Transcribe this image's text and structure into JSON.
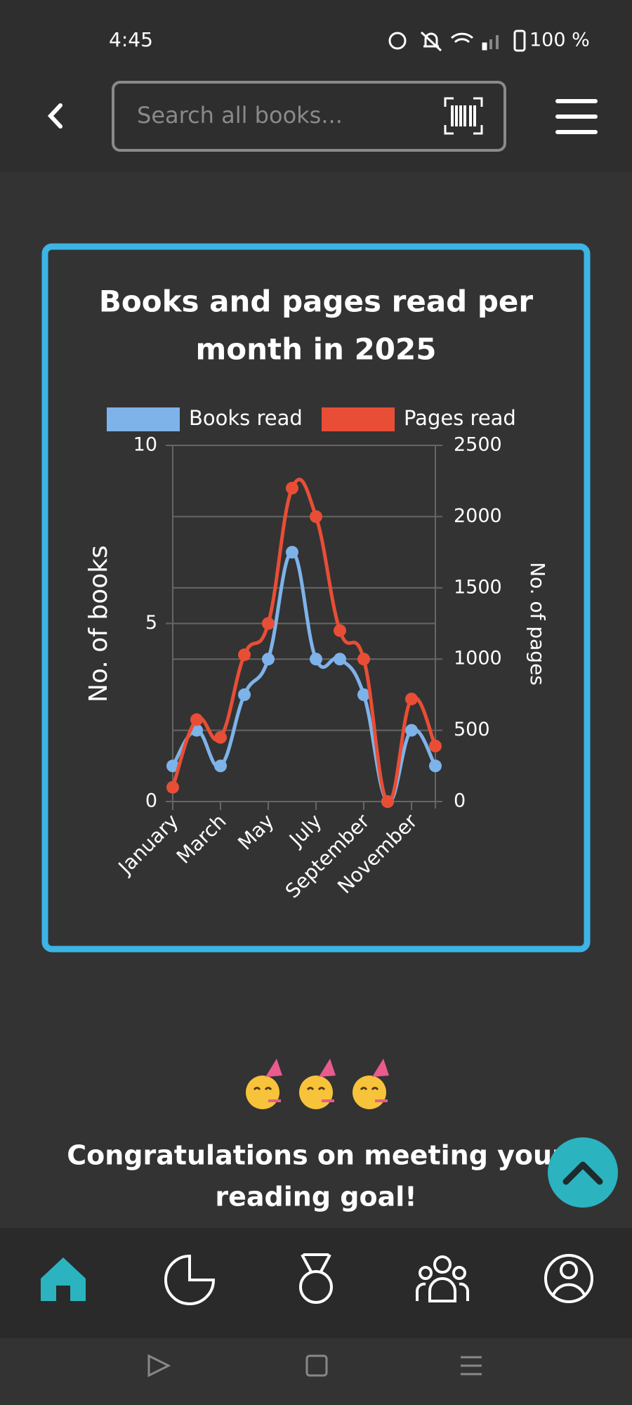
{
  "status": {
    "time": "4:45",
    "battery": "100 %"
  },
  "search": {
    "placeholder": "Search all books..."
  },
  "chart_data": {
    "type": "line",
    "title": [
      "Books and pages read per",
      "month in 2025"
    ],
    "categories": [
      "January",
      null,
      "March",
      null,
      "May",
      null,
      "July",
      null,
      "September",
      null,
      "November",
      null
    ],
    "series": [
      {
        "name": "Books read",
        "color": "#7eb3ea",
        "values": [
          1,
          2,
          1,
          3,
          4,
          7,
          4,
          4,
          3,
          0,
          2,
          1
        ]
      },
      {
        "name": "Pages read",
        "color": "#e84e36",
        "axis": "y2",
        "values": [
          100,
          575,
          450,
          1030,
          1250,
          2200,
          2000,
          1200,
          1000,
          0,
          720,
          390
        ]
      }
    ],
    "ylabel": "No. of books",
    "y2label": "No. of pages",
    "ylim": [
      0,
      10
    ],
    "yticks": [
      0,
      5,
      10
    ],
    "y2lim": [
      0,
      2500
    ],
    "y2ticks": [
      0,
      500,
      1000,
      1500,
      2000,
      2500
    ],
    "grid": true,
    "legend": "top"
  },
  "goal": {
    "message": [
      "Congratulations on meeting your",
      "reading goal!"
    ]
  }
}
